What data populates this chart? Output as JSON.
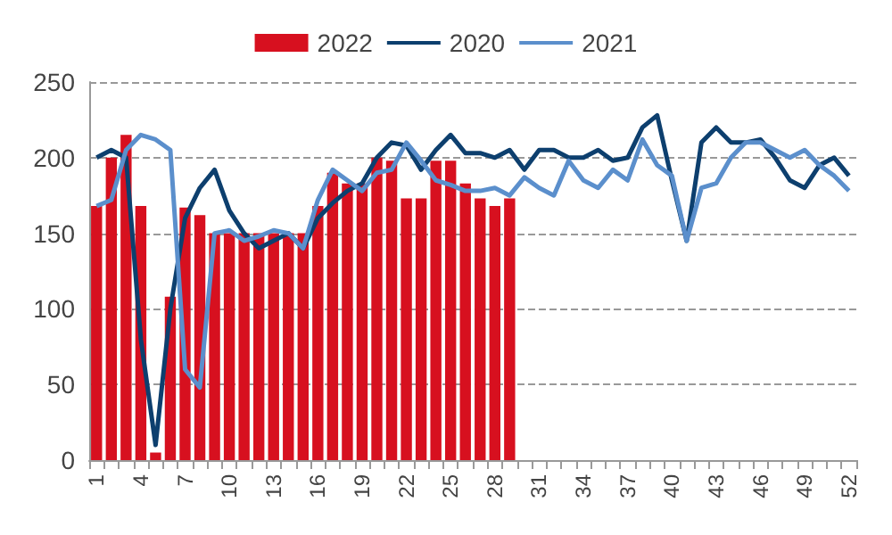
{
  "chart_data": {
    "type": "bar",
    "categories": [
      "1",
      null,
      null,
      "4",
      null,
      null,
      "7",
      null,
      null,
      "10",
      null,
      null,
      "13",
      null,
      null,
      "16",
      null,
      null,
      "19",
      null,
      null,
      "22",
      null,
      null,
      "25",
      null,
      null,
      "28",
      null,
      null,
      "31",
      null,
      null,
      "34",
      null,
      null,
      "37",
      null,
      null,
      "40",
      null,
      null,
      "43",
      null,
      null,
      "46",
      null,
      null,
      "49",
      null,
      null,
      "52"
    ],
    "series": [
      {
        "name": "2022",
        "color": "#d7101f",
        "values": [
          168,
          200,
          215,
          168,
          5,
          108,
          167,
          162,
          150,
          150,
          150,
          150,
          150,
          150,
          150,
          168,
          190,
          183,
          183,
          200,
          198,
          173,
          173,
          198,
          198,
          183,
          173,
          168,
          173,
          null,
          null,
          null,
          null,
          null,
          null,
          null,
          null,
          null,
          null,
          null,
          null,
          null,
          null,
          null,
          null,
          null,
          null,
          null,
          null,
          null,
          null,
          null
        ]
      },
      {
        "name": "2020",
        "type": "line",
        "color": "#0d3f6e",
        "values": [
          200,
          205,
          200,
          80,
          10,
          100,
          160,
          180,
          192,
          165,
          150,
          140,
          145,
          150,
          140,
          160,
          170,
          178,
          183,
          200,
          210,
          208,
          192,
          205,
          215,
          203,
          203,
          200,
          205,
          192,
          205,
          205,
          200,
          200,
          205,
          198,
          200,
          220,
          228,
          185,
          145,
          210,
          220,
          210,
          210,
          212,
          200,
          185,
          180,
          195,
          200,
          188
        ]
      },
      {
        "name": "2021",
        "type": "line",
        "color": "#5b8fcc",
        "values": [
          168,
          172,
          205,
          215,
          212,
          205,
          60,
          48,
          150,
          152,
          145,
          148,
          152,
          150,
          140,
          172,
          192,
          185,
          178,
          190,
          192,
          210,
          198,
          185,
          182,
          178,
          178,
          180,
          175,
          187,
          180,
          175,
          198,
          185,
          180,
          192,
          185,
          212,
          195,
          188,
          145,
          180,
          183,
          200,
          210,
          210,
          205,
          200,
          205,
          195,
          188,
          178
        ]
      }
    ],
    "ylim": [
      0,
      250
    ],
    "yticks": [
      0,
      50,
      100,
      150,
      200,
      250
    ],
    "grid": "y",
    "legend": "top",
    "marker": "none",
    "line_style": "solid"
  }
}
